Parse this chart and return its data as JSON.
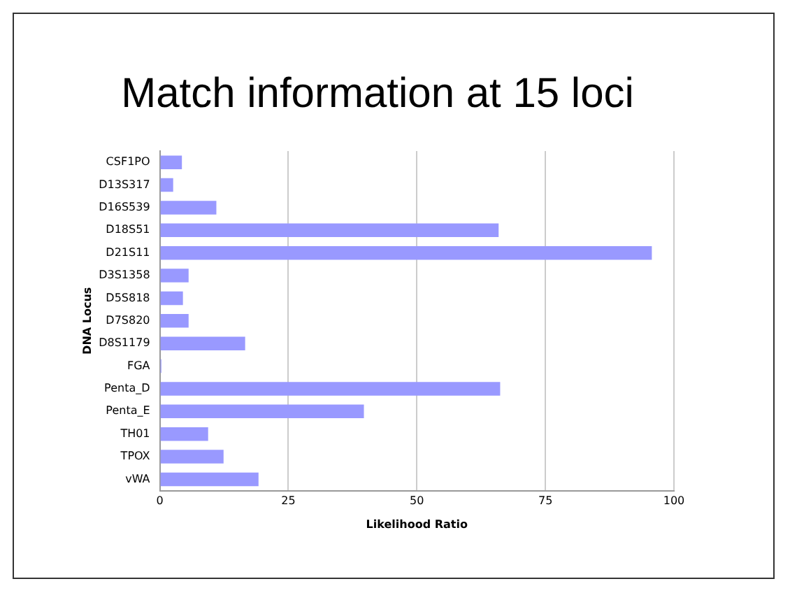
{
  "chart_data": {
    "type": "bar",
    "orientation": "horizontal",
    "title": "Match information at 15 loci",
    "xlabel": "Likelihood Ratio",
    "ylabel": "DNA Locus",
    "categories": [
      "CSF1PO",
      "D13S317",
      "D16S539",
      "D18S51",
      "D21S11",
      "D3S1358",
      "D5S818",
      "D7S820",
      "D8S1179",
      "FGA",
      "Penta_D",
      "Penta_E",
      "TH01",
      "TPOX",
      "vWA"
    ],
    "values": [
      4.3,
      2.6,
      11.0,
      65.9,
      95.7,
      5.6,
      4.5,
      5.6,
      16.6,
      0.3,
      66.2,
      39.7,
      9.4,
      12.4,
      19.2
    ],
    "color": "#9999ff",
    "xlim": [
      0,
      100
    ],
    "xticks": [
      0,
      25,
      50,
      75,
      100
    ],
    "grid": "x",
    "legend": false
  }
}
